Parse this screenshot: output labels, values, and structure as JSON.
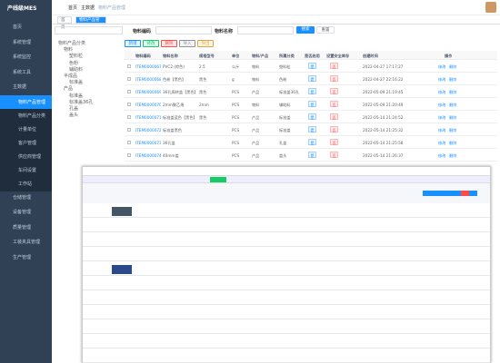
{
  "sidebar": {
    "logo": "产线级MES",
    "menu": [
      "首页",
      "系统管理",
      "系统监控",
      "系统工具",
      "主数据"
    ],
    "submenu": [
      "物料产品管理",
      "物料产品分类",
      "计量单位",
      "客户管理",
      "供应商管理",
      "车间设置",
      "工作站"
    ],
    "menu_after": [
      "仓储管理",
      "设备管理",
      "质量管理",
      "工装夹具管理",
      "生产管理"
    ]
  },
  "breadcrumb": [
    "首页",
    "主数据",
    "物料产品管理"
  ],
  "tabs": [
    "首页",
    "物料产品管理"
  ],
  "search": {
    "fields": [
      "物料编码",
      "物料名称"
    ],
    "buttons": [
      "搜索",
      "重置"
    ]
  },
  "toolbar": [
    "新增",
    "修改",
    "删除",
    "导入",
    "导出"
  ],
  "tree": [
    "物料产品分类",
    "物料",
    "塑料粒",
    "色粉",
    "辅助料",
    "半成品",
    "标准盖",
    "产品",
    "标准盖",
    "标准盖36孔",
    "孔盖",
    "盖头"
  ],
  "table": {
    "columns": [
      "物料编码",
      "物料名称",
      "规格型号",
      "单位",
      "物料/产品",
      "所属分类",
      "是否启用",
      "设置安全库存",
      "创建时间",
      "操作"
    ],
    "rows": [
      [
        "ITEM0000067",
        "PVC2 (棕色)",
        "2.5",
        "公斤",
        "物料",
        "塑料粒",
        "是",
        "否",
        "2022-04-27 17:17:27"
      ],
      [
        "ITEM0000068",
        "色粉【黑色】",
        "黑色",
        "g",
        "物料",
        "色粉",
        "是",
        "否",
        "2022-04-27 22:16:22"
      ],
      [
        "ITEM0000069",
        "36孔周转盖【黑色】",
        "黑色",
        "PCS",
        "产品",
        "标准盖36孔",
        "是",
        "否",
        "2022-05-09 21:19:45"
      ],
      [
        "ITEM0000070",
        "2mm聚乙烯",
        "2mm",
        "PCS",
        "物料",
        "辅助料",
        "是",
        "否",
        "2022-05-09 21:20:49"
      ],
      [
        "ITEM0000071",
        "标准盖蓝色【黑色】",
        "黑色",
        "PCS",
        "产品",
        "标准盖",
        "是",
        "否",
        "2022-05-14 21:24:52"
      ],
      [
        "ITEM0000072",
        "标准盖黑色",
        "",
        "PCS",
        "产品",
        "标准盖",
        "是",
        "否",
        "2022-05-14 21:25:32"
      ],
      [
        "ITEM0000073",
        "36孔盖",
        "",
        "PCS",
        "产品",
        "孔盖",
        "是",
        "否",
        "2022-05-14 21:25:58"
      ],
      [
        "ITEM0000074",
        "40mm盖",
        "",
        "PCS",
        "产品",
        "盖头",
        "是",
        "否",
        "2022-05-14 21:26:37"
      ]
    ],
    "actions": [
      "修改",
      "删除"
    ]
  }
}
